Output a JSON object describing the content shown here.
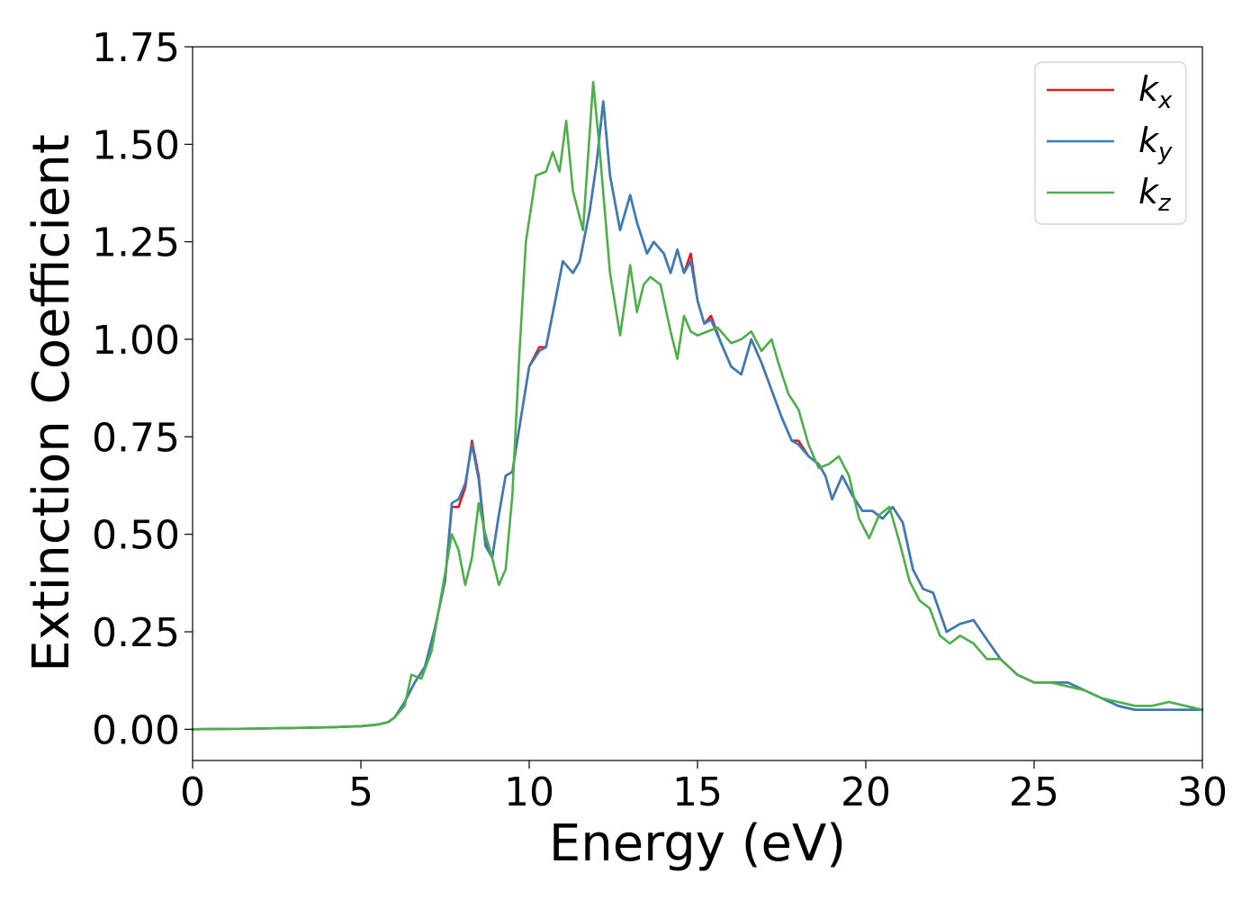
{
  "chart_data": {
    "type": "line",
    "xlabel": "Energy (eV)",
    "ylabel": "Extinction Coefficient",
    "xlim": [
      0,
      30
    ],
    "ylim": [
      -0.08,
      1.75
    ],
    "xticks": [
      0,
      5,
      10,
      15,
      20,
      25,
      30
    ],
    "yticks": [
      0.0,
      0.25,
      0.5,
      0.75,
      1.0,
      1.25,
      1.5,
      1.75
    ],
    "xtick_labels": [
      "0",
      "5",
      "10",
      "15",
      "20",
      "25",
      "30"
    ],
    "ytick_labels": [
      "0.00",
      "0.25",
      "0.50",
      "0.75",
      "1.00",
      "1.25",
      "1.50",
      "1.75"
    ],
    "grid": false,
    "legend_position": "top-right",
    "series": [
      {
        "name_base": "k",
        "name_sub": "x",
        "color": "#e41a1c",
        "x": [
          0,
          2,
          4,
          5,
          5.5,
          5.8,
          6,
          6.3,
          6.6,
          6.9,
          7.2,
          7.5,
          7.7,
          7.9,
          8.1,
          8.3,
          8.5,
          8.7,
          8.9,
          9.1,
          9.3,
          9.5,
          9.7,
          10,
          10.3,
          10.5,
          10.8,
          11,
          11.3,
          11.5,
          11.8,
          12,
          12.2,
          12.4,
          12.7,
          13,
          13.2,
          13.5,
          13.7,
          14,
          14.2,
          14.4,
          14.6,
          14.8,
          15,
          15.2,
          15.4,
          15.7,
          16,
          16.3,
          16.6,
          16.9,
          17.2,
          17.5,
          17.8,
          18,
          18.3,
          18.6,
          18.8,
          19,
          19.3,
          19.6,
          19.9,
          20.2,
          20.5,
          20.8,
          21.1,
          21.4,
          21.7,
          22,
          22.4,
          22.8,
          23.2,
          23.6,
          24,
          24.5,
          25,
          25.5,
          26,
          26.5,
          27,
          27.5,
          28,
          28.5,
          29,
          29.5,
          30
        ],
        "y": [
          0,
          0.002,
          0.005,
          0.008,
          0.012,
          0.018,
          0.03,
          0.07,
          0.12,
          0.16,
          0.26,
          0.38,
          0.57,
          0.57,
          0.62,
          0.74,
          0.65,
          0.48,
          0.44,
          0.55,
          0.65,
          0.66,
          0.77,
          0.93,
          0.98,
          0.98,
          1.11,
          1.2,
          1.17,
          1.2,
          1.33,
          1.45,
          1.61,
          1.42,
          1.28,
          1.37,
          1.3,
          1.22,
          1.25,
          1.22,
          1.17,
          1.23,
          1.17,
          1.22,
          1.1,
          1.04,
          1.06,
          0.99,
          0.93,
          0.91,
          1.0,
          0.94,
          0.87,
          0.8,
          0.74,
          0.74,
          0.7,
          0.68,
          0.65,
          0.59,
          0.65,
          0.6,
          0.56,
          0.56,
          0.54,
          0.57,
          0.53,
          0.41,
          0.36,
          0.35,
          0.25,
          0.27,
          0.28,
          0.23,
          0.18,
          0.14,
          0.12,
          0.12,
          0.12,
          0.1,
          0.08,
          0.06,
          0.05,
          0.05,
          0.05,
          0.05,
          0.05
        ]
      },
      {
        "name_base": "k",
        "name_sub": "y",
        "color": "#377eb8",
        "x": [
          0,
          2,
          4,
          5,
          5.5,
          5.8,
          6,
          6.3,
          6.6,
          6.9,
          7.2,
          7.5,
          7.7,
          7.9,
          8.1,
          8.3,
          8.5,
          8.7,
          8.9,
          9.1,
          9.3,
          9.5,
          9.7,
          10,
          10.3,
          10.5,
          10.8,
          11,
          11.3,
          11.5,
          11.8,
          12,
          12.2,
          12.4,
          12.7,
          13,
          13.2,
          13.5,
          13.7,
          14,
          14.2,
          14.4,
          14.6,
          14.8,
          15,
          15.2,
          15.4,
          15.7,
          16,
          16.3,
          16.6,
          16.9,
          17.2,
          17.5,
          17.8,
          18,
          18.3,
          18.6,
          18.8,
          19,
          19.3,
          19.6,
          19.9,
          20.2,
          20.5,
          20.8,
          21.1,
          21.4,
          21.7,
          22,
          22.4,
          22.8,
          23.2,
          23.6,
          24,
          24.5,
          25,
          25.5,
          26,
          26.5,
          27,
          27.5,
          28,
          28.5,
          29,
          29.5,
          30
        ],
        "y": [
          0,
          0.002,
          0.005,
          0.008,
          0.012,
          0.018,
          0.03,
          0.07,
          0.12,
          0.16,
          0.26,
          0.38,
          0.58,
          0.59,
          0.63,
          0.73,
          0.64,
          0.47,
          0.44,
          0.55,
          0.65,
          0.66,
          0.77,
          0.93,
          0.97,
          0.98,
          1.11,
          1.2,
          1.17,
          1.2,
          1.33,
          1.45,
          1.61,
          1.42,
          1.28,
          1.37,
          1.3,
          1.22,
          1.25,
          1.22,
          1.17,
          1.23,
          1.17,
          1.2,
          1.1,
          1.04,
          1.05,
          0.99,
          0.93,
          0.91,
          1.0,
          0.94,
          0.87,
          0.8,
          0.74,
          0.73,
          0.7,
          0.68,
          0.65,
          0.59,
          0.65,
          0.6,
          0.56,
          0.56,
          0.54,
          0.57,
          0.53,
          0.41,
          0.36,
          0.35,
          0.25,
          0.27,
          0.28,
          0.23,
          0.18,
          0.14,
          0.12,
          0.12,
          0.12,
          0.1,
          0.08,
          0.06,
          0.05,
          0.05,
          0.05,
          0.05,
          0.05
        ]
      },
      {
        "name_base": "k",
        "name_sub": "z",
        "color": "#4daf4a",
        "x": [
          0,
          2,
          4,
          5,
          5.5,
          5.8,
          6,
          6.3,
          6.5,
          6.8,
          7.1,
          7.4,
          7.7,
          7.9,
          8.1,
          8.3,
          8.5,
          8.7,
          8.9,
          9.1,
          9.3,
          9.5,
          9.7,
          9.9,
          10.2,
          10.5,
          10.7,
          10.9,
          11.1,
          11.3,
          11.6,
          11.9,
          12.1,
          12.4,
          12.7,
          13,
          13.2,
          13.4,
          13.6,
          13.9,
          14.2,
          14.4,
          14.6,
          14.8,
          15,
          15.3,
          15.6,
          16,
          16.3,
          16.6,
          16.9,
          17.2,
          17.4,
          17.7,
          18,
          18.3,
          18.6,
          18.9,
          19.2,
          19.5,
          19.8,
          20.1,
          20.4,
          20.7,
          21,
          21.3,
          21.6,
          21.9,
          22.2,
          22.5,
          22.8,
          23.2,
          23.6,
          24,
          24.5,
          25,
          25.5,
          26,
          26.5,
          27,
          27.5,
          28,
          28.5,
          29,
          29.5,
          30
        ],
        "y": [
          0,
          0.002,
          0.005,
          0.008,
          0.012,
          0.018,
          0.03,
          0.06,
          0.14,
          0.13,
          0.2,
          0.35,
          0.5,
          0.46,
          0.37,
          0.44,
          0.58,
          0.5,
          0.44,
          0.37,
          0.41,
          0.6,
          0.95,
          1.25,
          1.42,
          1.43,
          1.48,
          1.43,
          1.56,
          1.38,
          1.28,
          1.66,
          1.48,
          1.17,
          1.01,
          1.19,
          1.07,
          1.14,
          1.16,
          1.14,
          1.02,
          0.95,
          1.06,
          1.02,
          1.01,
          1.02,
          1.03,
          0.99,
          1.0,
          1.02,
          0.97,
          1.0,
          0.94,
          0.86,
          0.82,
          0.73,
          0.67,
          0.68,
          0.7,
          0.65,
          0.54,
          0.49,
          0.55,
          0.57,
          0.48,
          0.38,
          0.33,
          0.31,
          0.24,
          0.22,
          0.24,
          0.22,
          0.18,
          0.18,
          0.14,
          0.12,
          0.12,
          0.11,
          0.1,
          0.08,
          0.07,
          0.06,
          0.06,
          0.07,
          0.06,
          0.05
        ]
      }
    ]
  }
}
